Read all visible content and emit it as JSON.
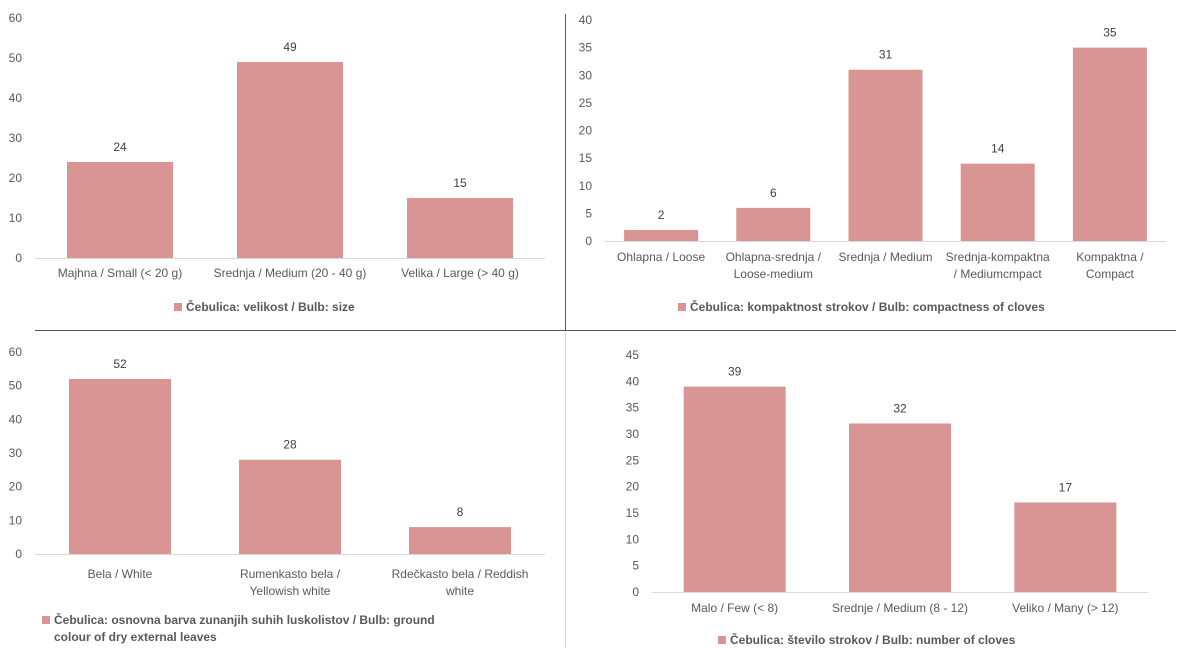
{
  "colors": {
    "bar": "#d99594",
    "axis": "#d9d9d9",
    "text": "#595959",
    "divider": "#595959"
  },
  "chart_data": [
    {
      "type": "bar",
      "title": "",
      "xlabel": "",
      "ylabel": "",
      "categories": [
        "Majhna / Small (< 20 g)",
        "Srednja / Medium (20 - 40 g)",
        "Velika / Large (> 40 g)"
      ],
      "series": [
        {
          "name": "Čebulica: velikost / Bulb: size",
          "values": [
            24,
            49,
            15
          ]
        }
      ],
      "ylim": [
        0,
        60
      ],
      "yticks": [
        0,
        10,
        20,
        30,
        40,
        50,
        60
      ],
      "grid": false,
      "legend": "bottom"
    },
    {
      "type": "bar",
      "title": "",
      "xlabel": "",
      "ylabel": "",
      "categories": [
        "Ohlapna / Loose",
        "Ohlapna-srednja / Loose-medium",
        "Srednja / Medium",
        "Srednja-kompaktna / Mediumcmpact",
        "Kompaktna / Compact"
      ],
      "series": [
        {
          "name": "Čebulica: kompaktnost strokov / Bulb: compactness of cloves",
          "values": [
            2,
            6,
            31,
            14,
            35
          ]
        }
      ],
      "ylim": [
        0,
        40
      ],
      "yticks": [
        0,
        5,
        10,
        15,
        20,
        25,
        30,
        35,
        40
      ],
      "grid": false,
      "legend": "bottom"
    },
    {
      "type": "bar",
      "title": "",
      "xlabel": "",
      "ylabel": "",
      "categories": [
        "Bela / White",
        "Rumenkasto bela / Yellowish white",
        "Rdečkasto bela / Reddish white"
      ],
      "series": [
        {
          "name": "Čebulica: osnovna barva zunanjih suhih luskolistov / Bulb: ground colour of dry external leaves",
          "values": [
            52,
            28,
            8
          ]
        }
      ],
      "ylim": [
        0,
        60
      ],
      "yticks": [
        0,
        10,
        20,
        30,
        40,
        50,
        60
      ],
      "grid": false,
      "legend": "bottom-left"
    },
    {
      "type": "bar",
      "title": "",
      "xlabel": "",
      "ylabel": "",
      "categories": [
        "Malo / Few (< 8)",
        "Srednje / Medium (8 - 12)",
        "Veliko / Many (> 12)"
      ],
      "series": [
        {
          "name": "Čebulica: število strokov / Bulb: number of cloves",
          "values": [
            39,
            32,
            17
          ]
        }
      ],
      "ylim": [
        0,
        45
      ],
      "yticks": [
        0,
        5,
        10,
        15,
        20,
        25,
        30,
        35,
        40,
        45
      ],
      "grid": false,
      "legend": "bottom"
    }
  ]
}
